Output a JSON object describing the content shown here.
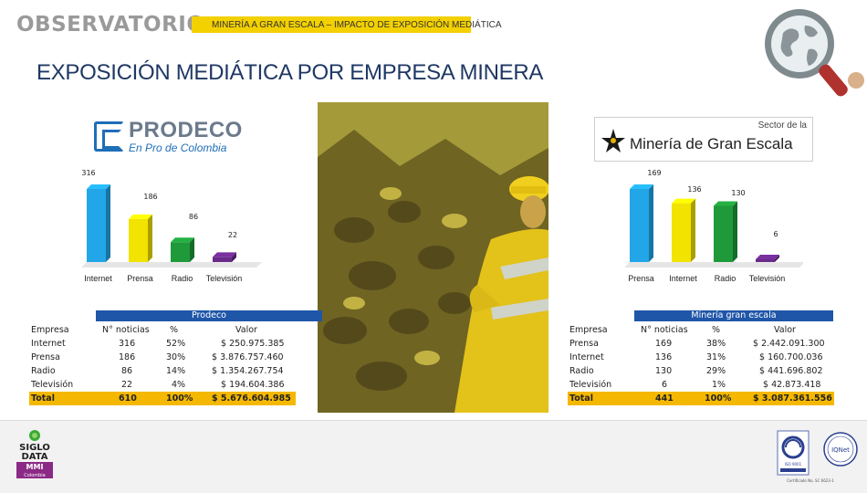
{
  "header": {
    "observatorio": "OBSERVATORIO",
    "subtitle": "MINERÍA A GRAN ESCALA – IMPACTO DE EXPOSICIÓN MEDIÁTICA",
    "title": "EXPOSICIÓN MEDIÁTICA POR EMPRESA MINERA"
  },
  "logos": {
    "prodeco_name": "PRODECO",
    "prodeco_tagline": "En Pro de Colombia",
    "mineria_sector": "Sector de la",
    "mineria_name": "Minería de Gran Escala"
  },
  "chart_data": [
    {
      "type": "bar",
      "categories": [
        "Internet",
        "Prensa",
        "Radio",
        "Televisión"
      ],
      "values": [
        316,
        186,
        86,
        22
      ],
      "colors": [
        "#22a6e8",
        "#f2e300",
        "#1f9a3a",
        "#6a2a8a"
      ]
    },
    {
      "type": "bar",
      "categories": [
        "Prensa",
        "Internet",
        "Radio",
        "Televisión"
      ],
      "values": [
        169,
        136,
        130,
        6
      ],
      "colors": [
        "#22a6e8",
        "#f2e300",
        "#1f9a3a",
        "#6a2a8a"
      ]
    }
  ],
  "tables": {
    "prodeco": {
      "caption": "Prodeco",
      "headers": [
        "Empresa",
        "N° noticias",
        "%",
        "Valor"
      ],
      "rows": [
        [
          "Internet",
          "316",
          "52%",
          "$ 250.975.385"
        ],
        [
          "Prensa",
          "186",
          "30%",
          "$ 3.876.757.460"
        ],
        [
          "Radio",
          "86",
          "14%",
          "$ 1.354.267.754"
        ],
        [
          "Televisión",
          "22",
          "4%",
          "$ 194.604.386"
        ]
      ],
      "total": [
        "Total",
        "610",
        "100%",
        "$ 5.676.604.985"
      ]
    },
    "mineria": {
      "caption": "Minería gran escala",
      "headers": [
        "Empresa",
        "N° noticias",
        "%",
        "Valor"
      ],
      "rows": [
        [
          "Prensa",
          "169",
          "38%",
          "$ 2.442.091.300"
        ],
        [
          "Internet",
          "136",
          "31%",
          "$ 160.700.036"
        ],
        [
          "Radio",
          "130",
          "29%",
          "$ 441.696.802"
        ],
        [
          "Televisión",
          "6",
          "1%",
          "$ 42.873.418"
        ]
      ],
      "total": [
        "Total",
        "441",
        "100%",
        "$ 3.087.361.556"
      ]
    }
  },
  "footer": {
    "siglo_line1": "SIGLO",
    "siglo_line2": "DATA",
    "siglo_mmi": "MMI",
    "siglo_country": "Colombia",
    "iso": "ISO 9001",
    "iqnet": "IQNet",
    "certificate": "Certificado No. SC 6623-1"
  }
}
